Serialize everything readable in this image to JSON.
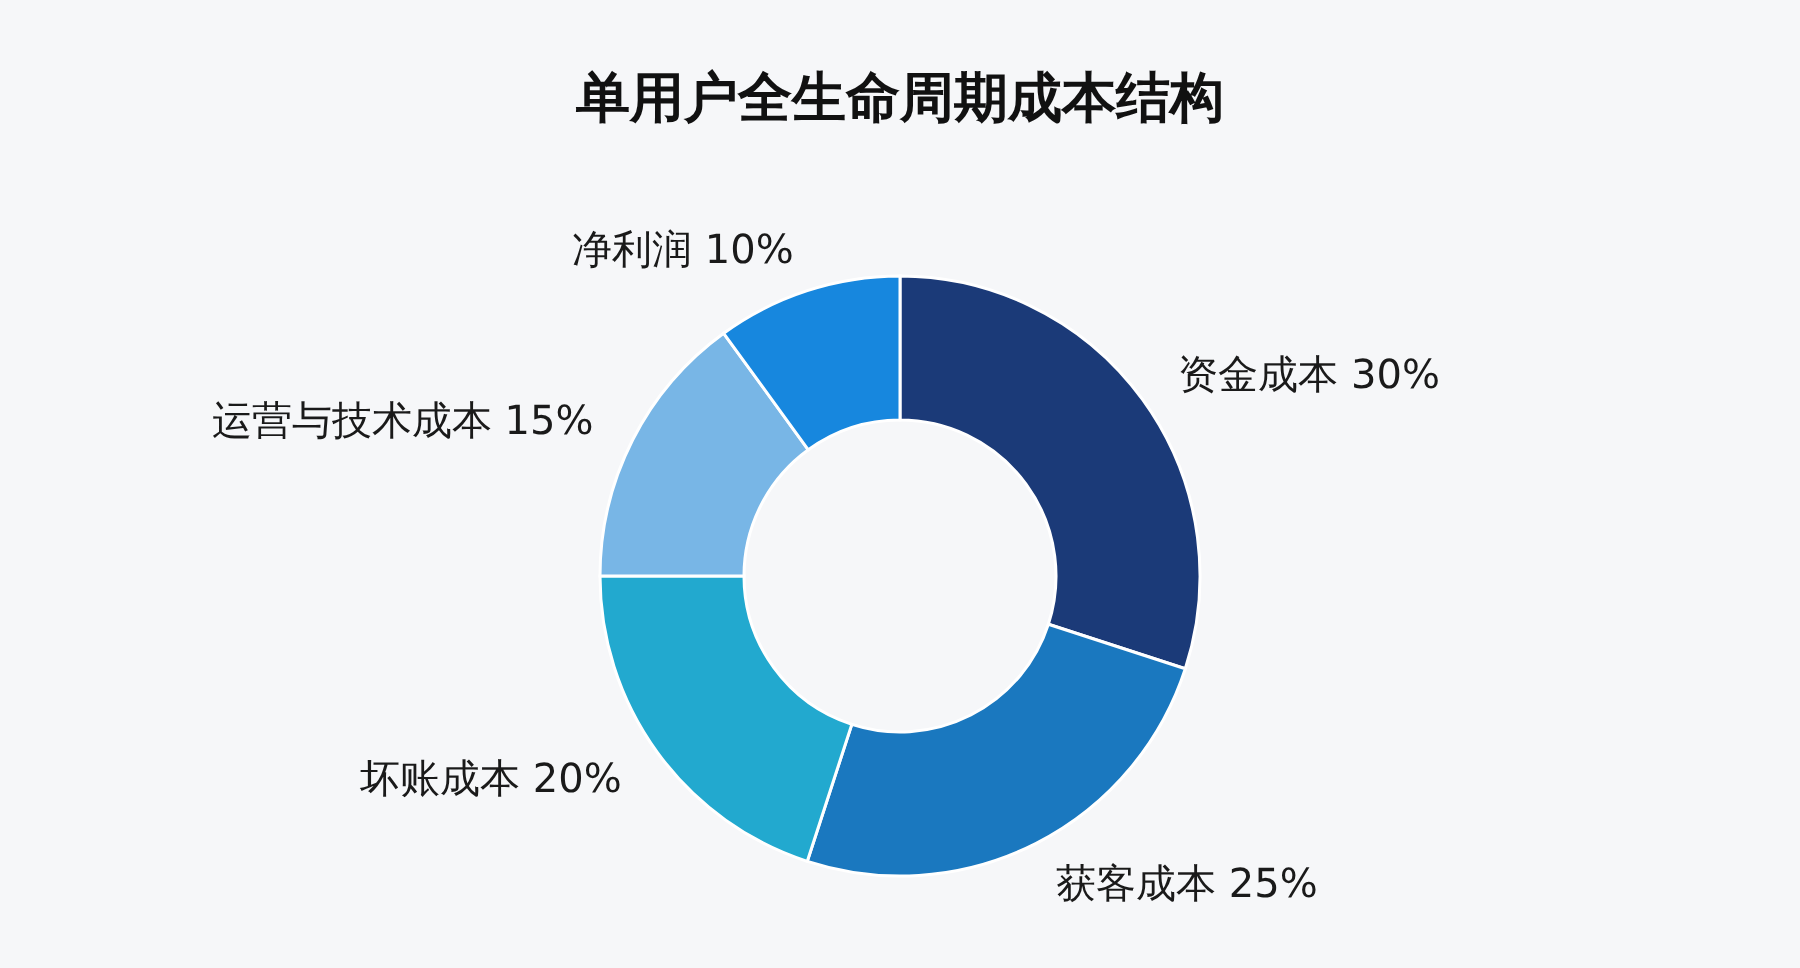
{
  "chart_data": {
    "type": "donut",
    "title": "单用户全生命周期成本结构",
    "categories": [
      "资金成本",
      "获客成本",
      "坏账成本",
      "运营与技术成本",
      "净利润"
    ],
    "values": [
      30,
      25,
      20,
      15,
      10
    ],
    "value_labels": [
      "30%",
      "25%",
      "20%",
      "15%",
      "10%"
    ],
    "colors": [
      "#1b3a78",
      "#1a78bf",
      "#22a9cf",
      "#78b6e6",
      "#1787de"
    ]
  }
}
